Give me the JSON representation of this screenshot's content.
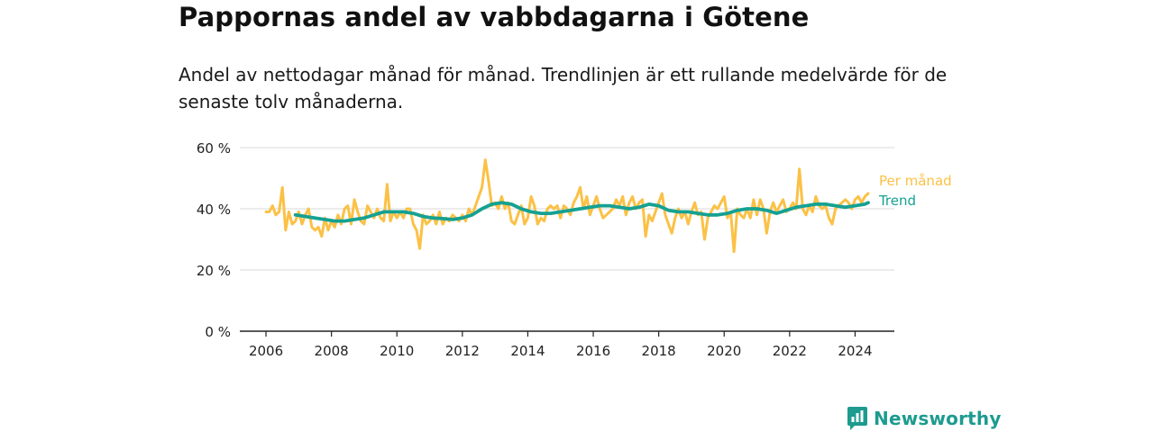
{
  "title": "Pappornas andel av vabbdagarna i Götene",
  "subtitle": "Andel av nettodagar månad för månad. Trendlinjen är ett rullande medelvärde för de senaste tolv månaderna.",
  "brand": {
    "name": "Newsworthy",
    "logo_icon": "newsworthy-logo-icon"
  },
  "colors": {
    "monthly": "#fbc146",
    "trend": "#15a192",
    "grid": "#d9d9d9",
    "axis": "#222222"
  },
  "chart_data": {
    "type": "line",
    "title": "Pappornas andel av vabbdagarna i Götene",
    "xlabel": "",
    "ylabel": "",
    "xlim": [
      2005.2,
      2025.2
    ],
    "ylim": [
      0,
      60
    ],
    "y_ticks": [
      0,
      20,
      40,
      60
    ],
    "y_tick_labels": [
      "0 %",
      "20 %",
      "40 %",
      "60 %"
    ],
    "x_ticks": [
      2006,
      2008,
      2010,
      2012,
      2014,
      2016,
      2018,
      2020,
      2022,
      2024
    ],
    "x_tick_labels": [
      "2006",
      "2008",
      "2010",
      "2012",
      "2014",
      "2016",
      "2018",
      "2020",
      "2022",
      "2024"
    ],
    "grid": true,
    "legend": "inline labels at line ends (right)",
    "series": [
      {
        "name": "Per månad",
        "color": "#fbc146",
        "x": [
          2006.0,
          2006.1,
          2006.2,
          2006.3,
          2006.4,
          2006.5,
          2006.6,
          2006.7,
          2006.8,
          2006.9,
          2007.0,
          2007.1,
          2007.2,
          2007.3,
          2007.4,
          2007.5,
          2007.6,
          2007.7,
          2007.8,
          2007.9,
          2008.0,
          2008.1,
          2008.2,
          2008.3,
          2008.4,
          2008.5,
          2008.6,
          2008.7,
          2008.8,
          2008.9,
          2009.0,
          2009.1,
          2009.2,
          2009.3,
          2009.4,
          2009.5,
          2009.6,
          2009.7,
          2009.8,
          2009.9,
          2010.0,
          2010.1,
          2010.2,
          2010.3,
          2010.4,
          2010.5,
          2010.6,
          2010.7,
          2010.8,
          2010.9,
          2011.0,
          2011.1,
          2011.2,
          2011.3,
          2011.4,
          2011.5,
          2011.6,
          2011.7,
          2011.8,
          2011.9,
          2012.0,
          2012.1,
          2012.2,
          2012.3,
          2012.4,
          2012.5,
          2012.6,
          2012.7,
          2012.8,
          2012.9,
          2013.0,
          2013.1,
          2013.2,
          2013.3,
          2013.4,
          2013.5,
          2013.6,
          2013.7,
          2013.8,
          2013.9,
          2014.0,
          2014.1,
          2014.2,
          2014.3,
          2014.4,
          2014.5,
          2014.6,
          2014.7,
          2014.8,
          2014.9,
          2015.0,
          2015.1,
          2015.2,
          2015.3,
          2015.4,
          2015.5,
          2015.6,
          2015.7,
          2015.8,
          2015.9,
          2016.0,
          2016.1,
          2016.2,
          2016.3,
          2016.4,
          2016.5,
          2016.6,
          2016.7,
          2016.8,
          2016.9,
          2017.0,
          2017.1,
          2017.2,
          2017.3,
          2017.4,
          2017.5,
          2017.6,
          2017.7,
          2017.8,
          2017.9,
          2018.0,
          2018.1,
          2018.2,
          2018.3,
          2018.4,
          2018.5,
          2018.6,
          2018.7,
          2018.8,
          2018.9,
          2019.0,
          2019.1,
          2019.2,
          2019.3,
          2019.4,
          2019.5,
          2019.6,
          2019.7,
          2019.8,
          2019.9,
          2020.0,
          2020.1,
          2020.2,
          2020.3,
          2020.4,
          2020.5,
          2020.6,
          2020.7,
          2020.8,
          2020.9,
          2021.0,
          2021.1,
          2021.2,
          2021.3,
          2021.4,
          2021.5,
          2021.6,
          2021.7,
          2021.8,
          2021.9,
          2022.0,
          2022.1,
          2022.2,
          2022.3,
          2022.4,
          2022.5,
          2022.6,
          2022.7,
          2022.8,
          2022.9,
          2023.0,
          2023.1,
          2023.2,
          2023.3,
          2023.4,
          2023.5,
          2023.6,
          2023.7,
          2023.8,
          2023.9,
          2024.0,
          2024.1,
          2024.2,
          2024.3,
          2024.4
        ],
        "values": [
          39,
          39,
          41,
          38,
          39,
          47,
          33,
          39,
          35,
          36,
          39,
          35,
          38,
          40,
          34,
          33,
          34,
          31,
          37,
          33,
          36,
          34,
          38,
          35,
          40,
          41,
          35,
          43,
          39,
          36,
          35,
          41,
          39,
          37,
          40,
          37,
          36,
          48,
          36,
          39,
          37,
          39,
          37,
          40,
          40,
          35,
          33,
          27,
          38,
          35,
          36,
          38,
          35,
          39,
          35,
          37,
          36,
          38,
          37,
          36,
          38,
          36,
          40,
          38,
          41,
          44,
          47,
          56,
          49,
          41,
          42,
          40,
          44,
          40,
          42,
          36,
          35,
          38,
          41,
          35,
          37,
          44,
          41,
          35,
          37,
          36,
          40,
          41,
          40,
          41,
          37,
          41,
          40,
          38,
          42,
          44,
          47,
          40,
          44,
          38,
          41,
          44,
          40,
          37,
          38,
          39,
          40,
          43,
          41,
          44,
          38,
          42,
          44,
          40,
          42,
          43,
          31,
          38,
          36,
          39,
          42,
          45,
          38,
          35,
          32,
          37,
          40,
          37,
          39,
          35,
          39,
          42,
          38,
          39,
          30,
          37,
          39,
          41,
          40,
          42,
          44,
          37,
          39,
          26,
          40,
          38,
          37,
          40,
          37,
          43,
          38,
          43,
          40,
          32,
          39,
          42,
          39,
          41,
          43,
          39,
          40,
          42,
          40,
          53,
          40,
          38,
          41,
          39,
          44,
          41,
          40,
          41,
          37,
          35,
          40,
          41,
          42,
          43,
          42,
          40,
          43,
          44,
          42,
          44,
          45
        ]
      },
      {
        "name": "Trend",
        "color": "#15a192",
        "x": [
          2006.9,
          2007.2,
          2007.5,
          2007.8,
          2008.1,
          2008.4,
          2008.7,
          2009.0,
          2009.3,
          2009.6,
          2009.9,
          2010.2,
          2010.5,
          2010.8,
          2011.1,
          2011.4,
          2011.7,
          2012.0,
          2012.3,
          2012.6,
          2012.9,
          2013.2,
          2013.5,
          2013.8,
          2014.1,
          2014.4,
          2014.7,
          2015.0,
          2015.3,
          2015.6,
          2015.9,
          2016.2,
          2016.5,
          2016.8,
          2017.1,
          2017.4,
          2017.7,
          2018.0,
          2018.3,
          2018.6,
          2018.9,
          2019.2,
          2019.5,
          2019.8,
          2020.1,
          2020.4,
          2020.7,
          2021.0,
          2021.3,
          2021.6,
          2021.9,
          2022.2,
          2022.5,
          2022.8,
          2023.1,
          2023.4,
          2023.7,
          2024.0,
          2024.3,
          2024.4
        ],
        "values": [
          38,
          37.5,
          37,
          36.5,
          36,
          36,
          36.5,
          37,
          38,
          39,
          39,
          39,
          38.5,
          37.5,
          37,
          36.8,
          36.5,
          37,
          38,
          40,
          41.5,
          42,
          41.5,
          40,
          39,
          38.5,
          38.5,
          39,
          39.5,
          40,
          40.5,
          41,
          41,
          40.5,
          40,
          40.5,
          41.5,
          41,
          39.5,
          39,
          39,
          38.5,
          38,
          38,
          38.5,
          39.5,
          40,
          40,
          39.5,
          38.5,
          39.5,
          40.5,
          41,
          41.5,
          41.5,
          41,
          40.5,
          41,
          41.5,
          42
        ]
      }
    ]
  }
}
